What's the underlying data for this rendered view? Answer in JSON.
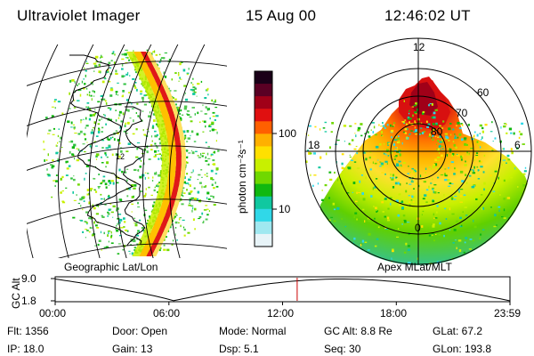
{
  "header": {
    "instrument": "Ultraviolet Imager",
    "date": "15 Aug 00",
    "time": "12:46:02 UT"
  },
  "colorbar": {
    "unit_label": "photon cm⁻²s⁻¹",
    "ticks": [
      "100",
      "10"
    ],
    "scale": "log",
    "colors_top_to_bottom": [
      "#1a0018",
      "#5a0024",
      "#a00018",
      "#e01010",
      "#ff6000",
      "#ffb000",
      "#ffe000",
      "#c8f000",
      "#70d800",
      "#10b810",
      "#10c8a0",
      "#30d8e8",
      "#a0e8f0",
      "#e8f4f8"
    ]
  },
  "panels": {
    "left_caption": "Geographic Lat/Lon",
    "right_caption": "Apex MLat/MLT",
    "map_label": "12",
    "polar": {
      "mlt_labels": {
        "top": "12",
        "left": "18",
        "right": "6",
        "bottom": "0"
      },
      "lat_labels": [
        "60",
        "70",
        "80"
      ]
    }
  },
  "altitude_strip": {
    "axis_label": "GC Alt",
    "y_ticks": [
      "9.0",
      "1.8"
    ],
    "x_ticks": [
      "00:00",
      "06:00",
      "12:00",
      "18:00",
      "23:59"
    ],
    "current_time_marker_hours": 12.77,
    "marker_color": "#cc0000"
  },
  "info": {
    "flt": "Flt: 1356",
    "ip": "IP: 18.0",
    "door": "Door:  Open",
    "gain": "Gain: 13",
    "mode": "Mode:  Normal",
    "dsp": "Dsp:      5.1",
    "gcalt": "GC Alt:  8.8 Re",
    "seq": "Seq:  30",
    "glat": "GLat:    67.2",
    "glon": "GLon:  193.8"
  }
}
